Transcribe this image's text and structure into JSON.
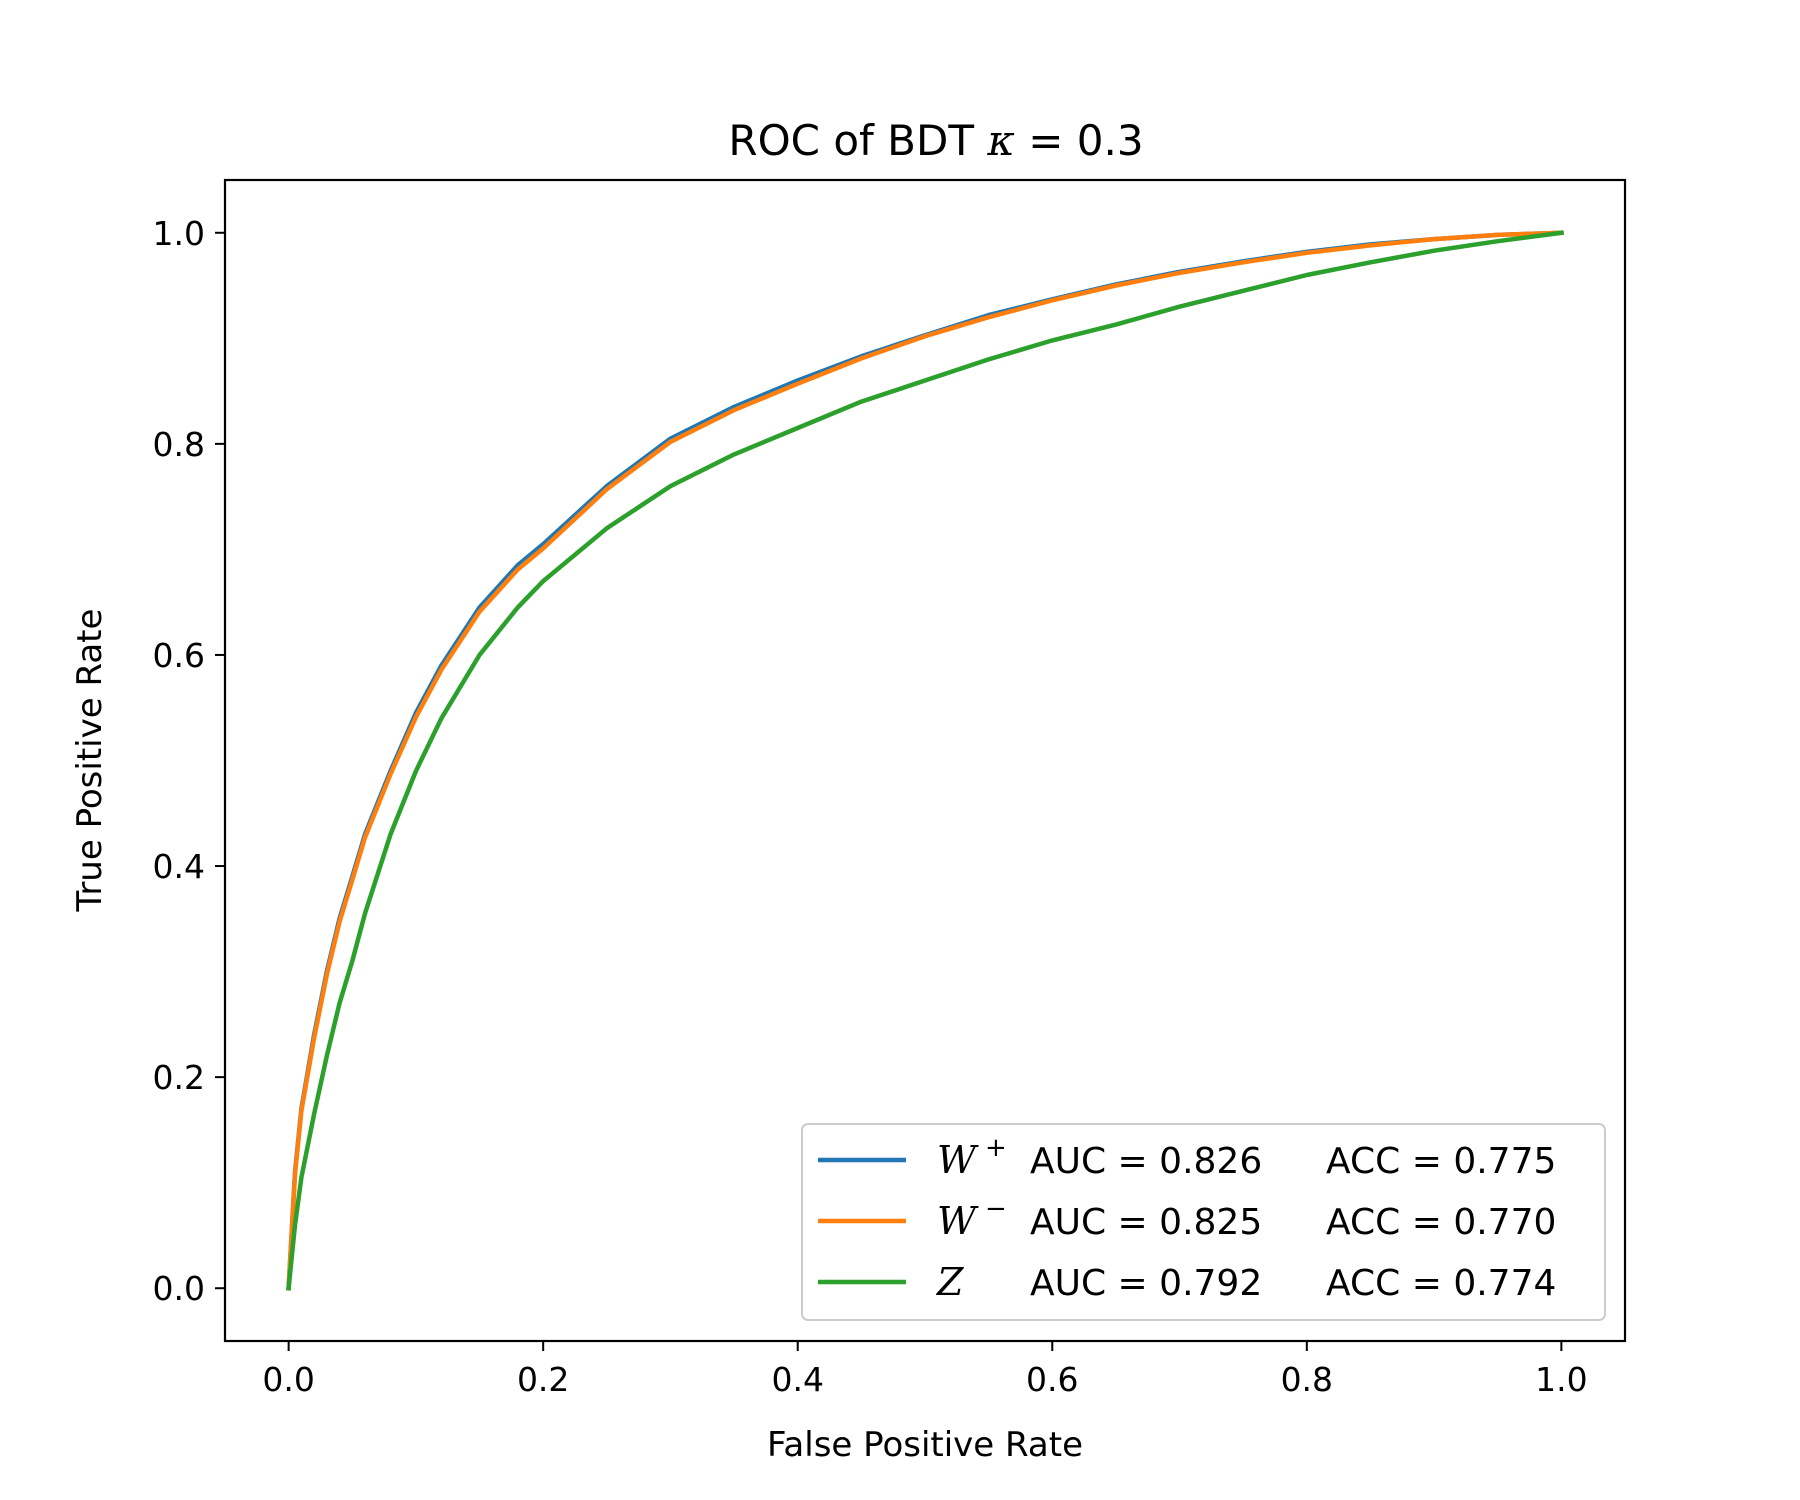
{
  "chart_data": {
    "type": "line",
    "title": "ROC of BDT κ = 0.3",
    "xlabel": "False Positive Rate",
    "ylabel": "True Positive Rate",
    "xlim": [
      -0.05,
      1.05
    ],
    "ylim": [
      -0.05,
      1.05
    ],
    "xticks": [
      "0.0",
      "0.2",
      "0.4",
      "0.6",
      "0.8",
      "1.0"
    ],
    "yticks": [
      "0.0",
      "0.2",
      "0.4",
      "0.6",
      "0.8",
      "1.0"
    ],
    "grid": false,
    "legend_position": "lower-right",
    "series": [
      {
        "name": "W+",
        "symbol": "W",
        "superscript": "+",
        "auc_text": "AUC = 0.826",
        "acc_text": "ACC = 0.775",
        "color": "#1f77b4",
        "x": [
          0,
          0.005,
          0.01,
          0.02,
          0.03,
          0.04,
          0.05,
          0.06,
          0.08,
          0.1,
          0.12,
          0.15,
          0.18,
          0.2,
          0.25,
          0.3,
          0.35,
          0.4,
          0.45,
          0.5,
          0.55,
          0.6,
          0.65,
          0.7,
          0.75,
          0.8,
          0.85,
          0.9,
          0.95,
          1.0
        ],
        "y": [
          0,
          0.11,
          0.17,
          0.24,
          0.3,
          0.35,
          0.39,
          0.43,
          0.49,
          0.545,
          0.59,
          0.645,
          0.685,
          0.705,
          0.76,
          0.805,
          0.835,
          0.86,
          0.883,
          0.903,
          0.922,
          0.937,
          0.951,
          0.963,
          0.973,
          0.982,
          0.989,
          0.994,
          0.998,
          1.0
        ]
      },
      {
        "name": "W−",
        "symbol": "W",
        "superscript": "−",
        "auc_text": "AUC = 0.825",
        "acc_text": "ACC = 0.770",
        "color": "#ff7f0e",
        "x": [
          0,
          0.005,
          0.01,
          0.02,
          0.03,
          0.04,
          0.05,
          0.06,
          0.08,
          0.1,
          0.12,
          0.15,
          0.18,
          0.2,
          0.25,
          0.3,
          0.35,
          0.4,
          0.45,
          0.5,
          0.55,
          0.6,
          0.65,
          0.7,
          0.75,
          0.8,
          0.85,
          0.9,
          0.95,
          1.0
        ],
        "y": [
          0,
          0.108,
          0.168,
          0.237,
          0.297,
          0.347,
          0.387,
          0.427,
          0.487,
          0.541,
          0.586,
          0.641,
          0.681,
          0.701,
          0.757,
          0.802,
          0.832,
          0.857,
          0.881,
          0.902,
          0.92,
          0.936,
          0.95,
          0.962,
          0.972,
          0.981,
          0.988,
          0.994,
          0.998,
          1.0
        ]
      },
      {
        "name": "Z",
        "symbol": "Z",
        "superscript": "",
        "auc_text": "AUC = 0.792",
        "acc_text": "ACC = 0.774",
        "color": "#2ca02c",
        "x": [
          0,
          0.005,
          0.01,
          0.02,
          0.03,
          0.04,
          0.05,
          0.06,
          0.08,
          0.1,
          0.12,
          0.15,
          0.18,
          0.2,
          0.25,
          0.3,
          0.35,
          0.4,
          0.45,
          0.5,
          0.55,
          0.6,
          0.65,
          0.7,
          0.75,
          0.8,
          0.85,
          0.9,
          0.95,
          1.0
        ],
        "y": [
          0,
          0.06,
          0.105,
          0.165,
          0.22,
          0.27,
          0.31,
          0.355,
          0.43,
          0.49,
          0.54,
          0.6,
          0.645,
          0.67,
          0.72,
          0.76,
          0.79,
          0.815,
          0.84,
          0.86,
          0.88,
          0.898,
          0.913,
          0.93,
          0.945,
          0.96,
          0.972,
          0.983,
          0.992,
          1.0
        ]
      }
    ]
  }
}
